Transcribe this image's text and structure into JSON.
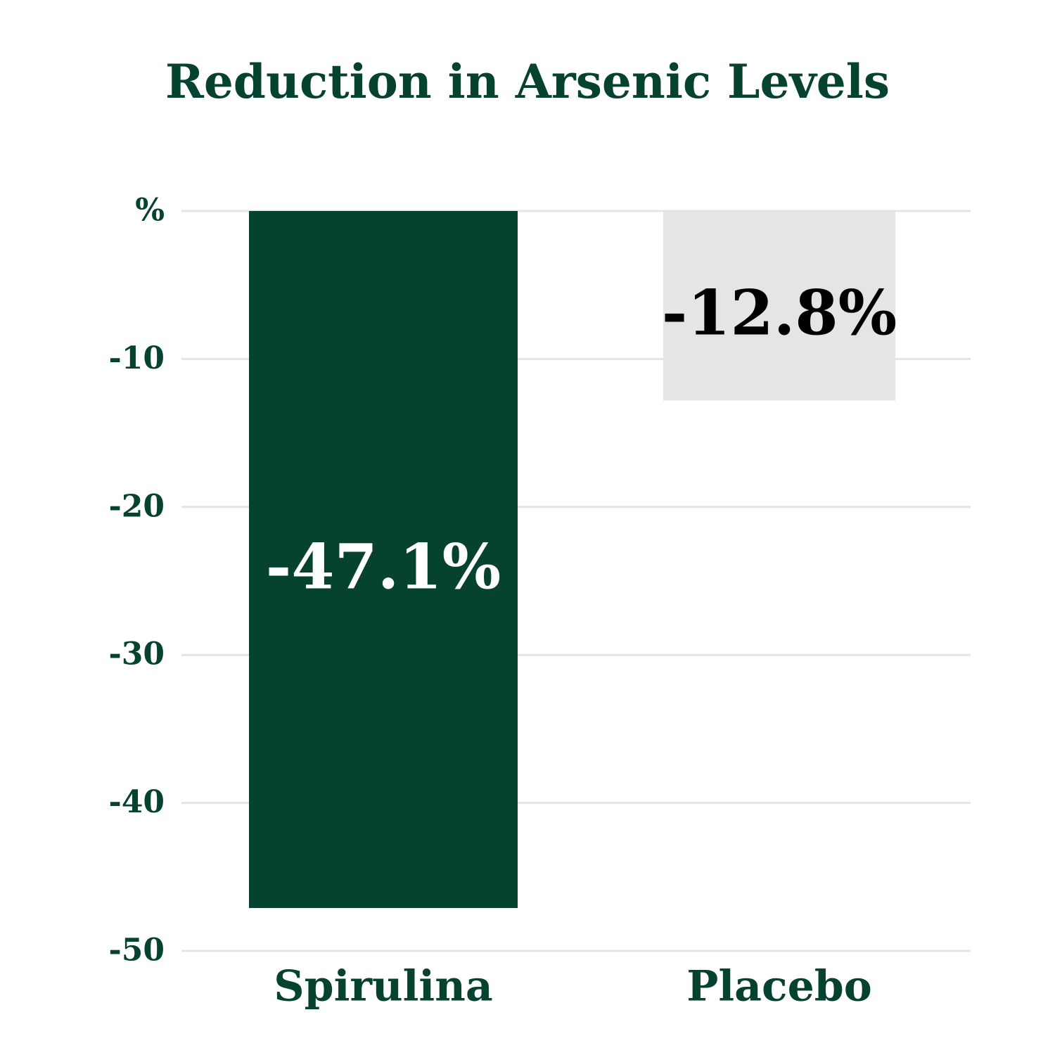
{
  "chart_data": {
    "type": "bar",
    "title": "Reduction in Arsenic Levels",
    "categories": [
      "Spirulina",
      "Placebo"
    ],
    "values": [
      -47.1,
      -12.8
    ],
    "value_labels": [
      "-47.1%",
      "-12.8%"
    ],
    "colors": [
      "#064230",
      "#e5e5e5"
    ],
    "ylim": [
      0,
      -50
    ],
    "yticks": [
      {
        "value": 0,
        "label": "%"
      },
      -10,
      -20,
      -30,
      -40,
      -50
    ],
    "grid": true
  }
}
